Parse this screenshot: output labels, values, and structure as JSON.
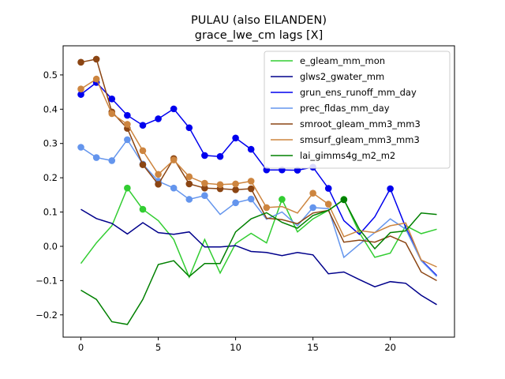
{
  "chart_data": {
    "type": "line",
    "title": "PULAU (also EILANDEN)",
    "subtitle": "grace_lwe_cm lags [X]",
    "xlabel": "",
    "ylabel": "",
    "xlim": [
      -1.15,
      24.15
    ],
    "ylim": [
      -0.265,
      0.585
    ],
    "xticks": [
      0,
      5,
      10,
      15,
      20
    ],
    "yticks": [
      -0.2,
      -0.1,
      0.0,
      0.1,
      0.2,
      0.3,
      0.4,
      0.5
    ],
    "ytick_labels": [
      "−0.2",
      "−0.1",
      "0.0",
      "0.1",
      "0.2",
      "0.3",
      "0.4",
      "0.5"
    ],
    "legend_position": "upper right",
    "grid": false,
    "x": [
      0,
      1,
      2,
      3,
      4,
      5,
      6,
      7,
      8,
      9,
      10,
      11,
      12,
      13,
      14,
      15,
      16,
      17,
      18,
      19,
      20,
      21,
      22,
      23
    ],
    "series": [
      {
        "name": "e_gleam_mm_mon",
        "color": "#32cd32",
        "values": [
          -0.05,
          0.01,
          0.06,
          0.17,
          0.108,
          0.075,
          0.02,
          -0.09,
          0.02,
          -0.078,
          0.008,
          0.038,
          0.01,
          0.137,
          0.042,
          0.08,
          0.105,
          0.137,
          0.04,
          -0.032,
          -0.02,
          0.06,
          0.037,
          0.05
        ],
        "markers": [
          3,
          4,
          13,
          17
        ]
      },
      {
        "name": "glws2_gwater_mm",
        "color": "#00008b",
        "values": [
          0.108,
          0.081,
          0.067,
          0.036,
          0.069,
          0.04,
          0.035,
          0.042,
          -0.002,
          -0.002,
          0.002,
          -0.015,
          -0.018,
          -0.027,
          -0.018,
          -0.025,
          -0.08,
          -0.075,
          -0.097,
          -0.118,
          -0.103,
          -0.108,
          -0.143,
          -0.17
        ],
        "markers": []
      },
      {
        "name": "grun_ens_runoff_mm_day",
        "color": "#0000ee",
        "values": [
          0.443,
          0.478,
          0.43,
          0.382,
          0.353,
          0.372,
          0.401,
          0.346,
          0.265,
          0.262,
          0.316,
          0.283,
          0.223,
          0.223,
          0.222,
          0.231,
          0.169,
          0.075,
          0.035,
          0.086,
          0.168,
          0.055,
          -0.04,
          -0.085
        ],
        "markers": [
          0,
          1,
          2,
          3,
          4,
          5,
          6,
          7,
          8,
          9,
          10,
          11,
          12,
          13,
          14,
          15,
          16,
          20
        ]
      },
      {
        "name": "prec_fldas_mm_day",
        "color": "#6495ed",
        "values": [
          0.289,
          0.259,
          0.25,
          0.311,
          0.24,
          0.19,
          0.17,
          0.137,
          0.148,
          0.093,
          0.127,
          0.138,
          0.079,
          0.1,
          0.06,
          0.113,
          0.11,
          -0.032,
          0.006,
          0.04,
          0.08,
          0.05,
          -0.042,
          -0.088
        ],
        "markers": [
          0,
          1,
          2,
          3,
          4,
          5,
          6,
          7,
          8,
          10,
          11,
          15
        ]
      },
      {
        "name": "smroot_gleam_mm3_mm3",
        "color": "#8b4513",
        "values": [
          0.537,
          0.546,
          0.392,
          0.344,
          0.238,
          0.181,
          0.256,
          0.182,
          0.17,
          0.168,
          0.165,
          0.168,
          0.082,
          0.078,
          0.066,
          0.097,
          0.105,
          0.012,
          0.018,
          0.012,
          0.03,
          0.01,
          -0.075,
          -0.1
        ],
        "markers": [
          0,
          1,
          2,
          3,
          4,
          5,
          6,
          7,
          8,
          9,
          10,
          11
        ]
      },
      {
        "name": "smsurf_gleam_mm3_mm3",
        "color": "#cd853f",
        "values": [
          0.459,
          0.488,
          0.387,
          0.356,
          0.279,
          0.21,
          0.252,
          0.203,
          0.184,
          0.18,
          0.182,
          0.19,
          0.113,
          0.116,
          0.097,
          0.155,
          0.123,
          0.028,
          0.046,
          0.04,
          0.06,
          0.068,
          -0.04,
          -0.06
        ],
        "markers": [
          0,
          1,
          2,
          3,
          4,
          5,
          6,
          7,
          8,
          9,
          10,
          11,
          12,
          15,
          16
        ]
      },
      {
        "name": "lai_gimms4g_m2_m2",
        "color": "#008000",
        "values": [
          -0.128,
          -0.155,
          -0.22,
          -0.228,
          -0.155,
          -0.053,
          -0.042,
          -0.088,
          -0.05,
          -0.05,
          0.042,
          0.08,
          0.098,
          0.07,
          0.053,
          0.09,
          0.105,
          0.136,
          0.05,
          -0.007,
          0.04,
          0.045,
          0.097,
          0.093
        ],
        "markers": [
          17
        ]
      }
    ]
  }
}
